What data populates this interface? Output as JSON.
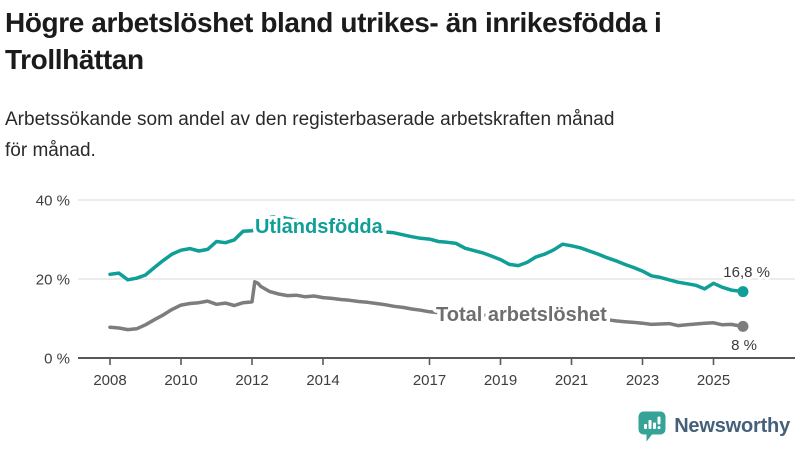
{
  "header": {
    "title_line1": "Högre arbetslöshet bland utrikes- än inrikesfödda i",
    "title_line2": "Trollhättan",
    "subtitle_line1": "Arbetssökande som andel av den registerbaserade arbetskraften månad",
    "subtitle_line2": "för månad."
  },
  "chart_data": {
    "type": "line",
    "xlabel": "",
    "ylabel": "",
    "ylim": [
      0,
      44
    ],
    "xlim": [
      2007.1,
      2026.3
    ],
    "grid": "horizontal-only",
    "y_ticks": [
      {
        "label": "0 %",
        "value": 0
      },
      {
        "label": "20 %",
        "value": 20
      },
      {
        "label": "40 %",
        "value": 40
      }
    ],
    "x_ticks": [
      {
        "label": "2008",
        "year": 2008
      },
      {
        "label": "2010",
        "year": 2010
      },
      {
        "label": "2012",
        "year": 2012
      },
      {
        "label": "2014",
        "year": 2014
      },
      {
        "label": "2017",
        "year": 2017
      },
      {
        "label": "2019",
        "year": 2019
      },
      {
        "label": "2021",
        "year": 2021
      },
      {
        "label": "2023",
        "year": 2023
      },
      {
        "label": "2025",
        "year": 2025
      }
    ],
    "x": [
      2008.0,
      2008.25,
      2008.5,
      2008.75,
      2009.0,
      2009.25,
      2009.5,
      2009.75,
      2010.0,
      2010.25,
      2010.5,
      2010.75,
      2011.0,
      2011.25,
      2011.5,
      2011.75,
      2012.0,
      2012.08,
      2012.17,
      2012.25,
      2012.5,
      2012.75,
      2013.0,
      2013.25,
      2013.5,
      2013.75,
      2014.0,
      2014.25,
      2014.5,
      2014.75,
      2015.0,
      2015.25,
      2015.5,
      2015.75,
      2016.0,
      2016.25,
      2016.5,
      2016.75,
      2017.0,
      2017.25,
      2017.5,
      2017.75,
      2018.0,
      2018.25,
      2018.5,
      2018.75,
      2019.0,
      2019.25,
      2019.5,
      2019.75,
      2020.0,
      2020.25,
      2020.5,
      2020.75,
      2021.0,
      2021.25,
      2021.5,
      2021.75,
      2022.0,
      2022.25,
      2022.5,
      2022.75,
      2023.0,
      2023.25,
      2023.5,
      2023.75,
      2024.0,
      2024.25,
      2024.5,
      2024.75,
      2025.0,
      2025.25,
      2025.5,
      2025.75,
      2025.83
    ],
    "series": [
      {
        "name": "Utlandsfödda",
        "color": "#0f9f97",
        "end_label": "16,8 %",
        "end_value": 16.8,
        "values": [
          21.2,
          21.5,
          19.8,
          20.2,
          21.0,
          22.9,
          24.7,
          26.3,
          27.3,
          27.7,
          27.1,
          27.5,
          29.5,
          29.2,
          29.9,
          32.1,
          32.2,
          32.6,
          33.3,
          33.9,
          35.6,
          35.8,
          35.3,
          34.9,
          34.4,
          34.0,
          33.7,
          33.4,
          33.1,
          32.9,
          32.6,
          32.4,
          32.1,
          31.9,
          31.7,
          31.2,
          30.7,
          30.3,
          30.1,
          29.5,
          29.3,
          29.0,
          27.8,
          27.2,
          26.6,
          25.8,
          24.9,
          23.7,
          23.4,
          24.2,
          25.6,
          26.3,
          27.4,
          28.8,
          28.4,
          27.9,
          27.1,
          26.3,
          25.4,
          24.6,
          23.7,
          22.9,
          22.0,
          20.8,
          20.4,
          19.8,
          19.2,
          18.8,
          18.4,
          17.5,
          18.9,
          17.9,
          17.2,
          16.9,
          16.8
        ]
      },
      {
        "name": "Total arbetslöshet",
        "color": "#7d7d7d",
        "end_label": "8 %",
        "end_value": 8.0,
        "values": [
          7.8,
          7.6,
          7.2,
          7.4,
          8.4,
          9.7,
          10.9,
          12.3,
          13.4,
          13.8,
          14.0,
          14.4,
          13.6,
          13.9,
          13.3,
          14.0,
          14.2,
          19.3,
          18.9,
          18.1,
          16.8,
          16.2,
          15.8,
          15.9,
          15.5,
          15.7,
          15.3,
          15.1,
          14.8,
          14.6,
          14.3,
          14.1,
          13.8,
          13.5,
          13.1,
          12.8,
          12.4,
          12.1,
          11.7,
          11.5,
          11.3,
          11.2,
          11.1,
          10.9,
          10.8,
          10.7,
          10.6,
          10.5,
          10.5,
          10.7,
          11.0,
          11.7,
          11.9,
          11.6,
          11.2,
          10.8,
          10.4,
          10.0,
          9.7,
          9.4,
          9.2,
          9.0,
          8.8,
          8.5,
          8.6,
          8.7,
          8.2,
          8.4,
          8.6,
          8.8,
          8.9,
          8.4,
          8.5,
          8.1,
          8.0
        ]
      }
    ]
  },
  "colors": {
    "series1": "#0f9f97",
    "series1_label": "#0f9f97",
    "series2": "#7d7d7d",
    "series2_label": "#6e6e6e",
    "gridline": "#d8d8d8",
    "axis": "#58585a",
    "logo_icon": "#36a396",
    "logo_text": "#45607a"
  },
  "footer": {
    "brand": "Newsworthy"
  }
}
